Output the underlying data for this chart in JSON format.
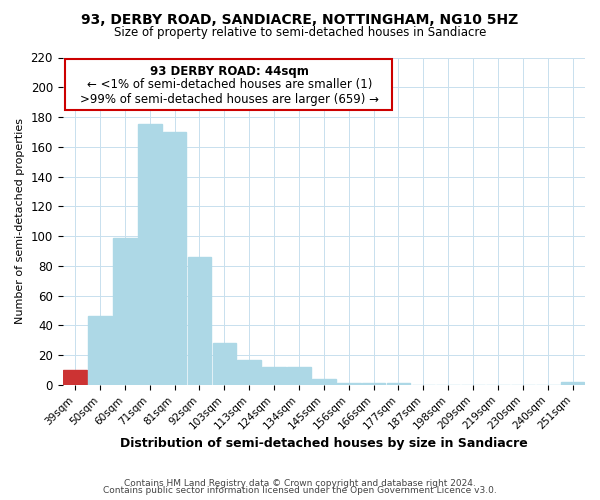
{
  "title": "93, DERBY ROAD, SANDIACRE, NOTTINGHAM, NG10 5HZ",
  "subtitle": "Size of property relative to semi-detached houses in Sandiacre",
  "xlabel": "Distribution of semi-detached houses by size in Sandiacre",
  "ylabel": "Number of semi-detached properties",
  "bar_labels": [
    "39sqm",
    "50sqm",
    "60sqm",
    "71sqm",
    "81sqm",
    "92sqm",
    "103sqm",
    "113sqm",
    "124sqm",
    "134sqm",
    "145sqm",
    "156sqm",
    "166sqm",
    "177sqm",
    "187sqm",
    "198sqm",
    "209sqm",
    "219sqm",
    "230sqm",
    "240sqm",
    "251sqm"
  ],
  "bar_values": [
    10,
    46,
    99,
    175,
    170,
    86,
    28,
    17,
    12,
    12,
    4,
    1,
    1,
    1,
    0,
    0,
    0,
    0,
    0,
    0,
    2
  ],
  "bar_color": "#add8e6",
  "highlight_bar_index": 0,
  "highlight_bar_color": "#cc3333",
  "ylim": [
    0,
    220
  ],
  "yticks": [
    0,
    20,
    40,
    60,
    80,
    100,
    120,
    140,
    160,
    180,
    200,
    220
  ],
  "annotation_title": "93 DERBY ROAD: 44sqm",
  "annotation_line1": "← <1% of semi-detached houses are smaller (1)",
  "annotation_line2": ">99% of semi-detached houses are larger (659) →",
  "annotation_box_color": "#ffffff",
  "annotation_box_edge": "#cc0000",
  "footer_line1": "Contains HM Land Registry data © Crown copyright and database right 2024.",
  "footer_line2": "Contains public sector information licensed under the Open Government Licence v3.0.",
  "background_color": "#ffffff",
  "grid_color": "#c8e0ee"
}
